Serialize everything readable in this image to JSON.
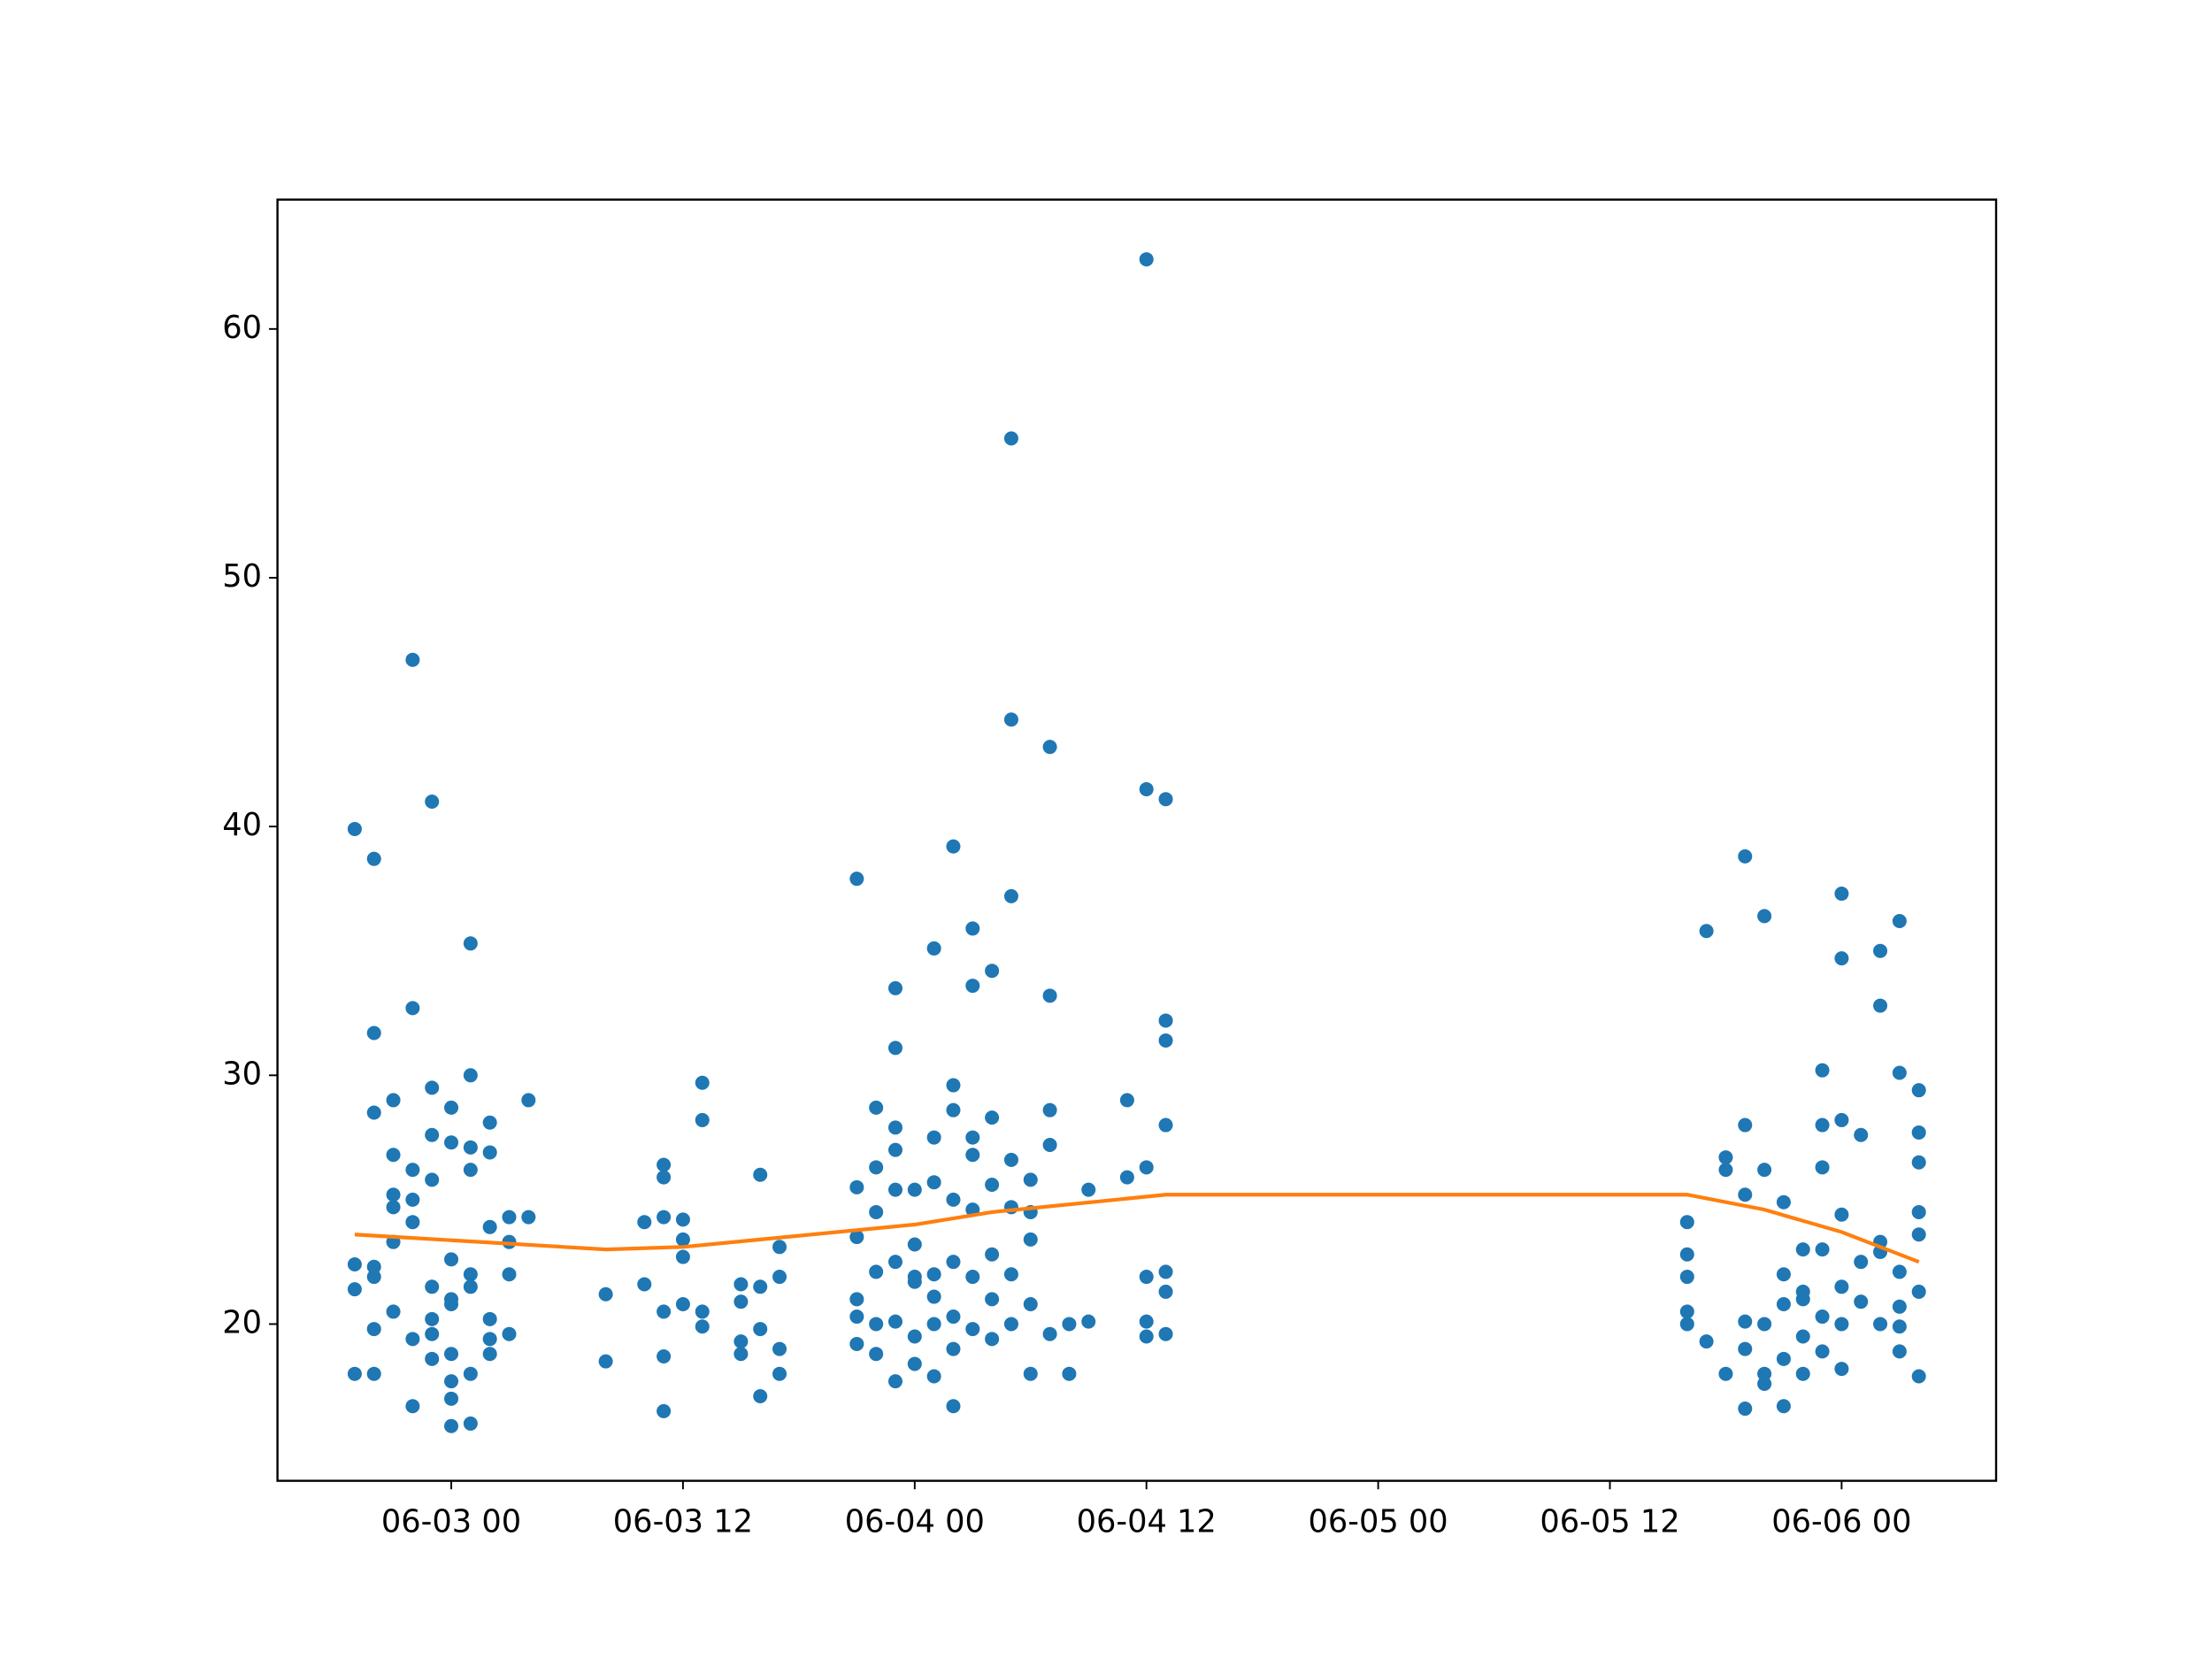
{
  "chart_data": {
    "type": "scatter",
    "xlim": [
      "06-02 15",
      "06-06 08"
    ],
    "xticks": [
      "06-03 00",
      "06-03 12",
      "06-04 00",
      "06-04 12",
      "06-05 00",
      "06-05 12",
      "06-06 00"
    ],
    "ylim": [
      13.7,
      65.2
    ],
    "yticks": [
      20,
      30,
      40,
      50,
      60
    ],
    "series": [
      {
        "type": "scatter",
        "color": "#1f77b4",
        "x": [
          "06-02 19",
          "06-02 19",
          "06-02 19",
          "06-02 19",
          "06-02 20",
          "06-02 20",
          "06-02 20",
          "06-02 20",
          "06-02 20",
          "06-02 20",
          "06-02 20",
          "06-02 21",
          "06-02 21",
          "06-02 21",
          "06-02 21",
          "06-02 21",
          "06-02 21",
          "06-02 22",
          "06-02 22",
          "06-02 22",
          "06-02 22",
          "06-02 22",
          "06-02 22",
          "06-02 22",
          "06-02 23",
          "06-02 23",
          "06-02 23",
          "06-02 23",
          "06-02 23",
          "06-02 23",
          "06-02 23",
          "06-02 23",
          "06-03 00",
          "06-03 00",
          "06-03 00",
          "06-03 00",
          "06-03 00",
          "06-03 00",
          "06-03 00",
          "06-03 00",
          "06-03 00",
          "06-03 01",
          "06-03 01",
          "06-03 01",
          "06-03 01",
          "06-03 01",
          "06-03 01",
          "06-03 01",
          "06-03 01",
          "06-03 02",
          "06-03 02",
          "06-03 02",
          "06-03 02",
          "06-03 02",
          "06-03 02",
          "06-03 03",
          "06-03 03",
          "06-03 03",
          "06-03 03",
          "06-03 04",
          "06-03 04",
          "06-03 08",
          "06-03 08",
          "06-03 10",
          "06-03 10",
          "06-03 11",
          "06-03 11",
          "06-03 11",
          "06-03 11",
          "06-03 11",
          "06-03 11",
          "06-03 12",
          "06-03 12",
          "06-03 12",
          "06-03 12",
          "06-03 13",
          "06-03 13",
          "06-03 13",
          "06-03 13",
          "06-03 15",
          "06-03 15",
          "06-03 15",
          "06-03 15",
          "06-03 16",
          "06-03 16",
          "06-03 16",
          "06-03 16",
          "06-03 17",
          "06-03 17",
          "06-03 17",
          "06-03 17",
          "06-03 21",
          "06-03 21",
          "06-03 21",
          "06-03 21",
          "06-03 21",
          "06-03 21",
          "06-03 22",
          "06-03 22",
          "06-03 22",
          "06-03 22",
          "06-03 22",
          "06-03 22",
          "06-03 23",
          "06-03 23",
          "06-03 23",
          "06-03 23",
          "06-03 23",
          "06-03 23",
          "06-03 23",
          "06-03 23",
          "06-04 00",
          "06-04 00",
          "06-04 00",
          "06-04 00",
          "06-04 00",
          "06-04 00",
          "06-04 01",
          "06-04 01",
          "06-04 01",
          "06-04 01",
          "06-04 01",
          "06-04 01",
          "06-04 01",
          "06-04 02",
          "06-04 02",
          "06-04 02",
          "06-04 02",
          "06-04 02",
          "06-04 02",
          "06-04 02",
          "06-04 02",
          "06-04 03",
          "06-04 03",
          "06-04 03",
          "06-04 03",
          "06-04 03",
          "06-04 03",
          "06-04 03",
          "06-04 04",
          "06-04 04",
          "06-04 04",
          "06-04 04",
          "06-04 04",
          "06-04 04",
          "06-04 05",
          "06-04 05",
          "06-04 05",
          "06-04 05",
          "06-04 05",
          "06-04 05",
          "06-04 05",
          "06-04 06",
          "06-04 06",
          "06-04 06",
          "06-04 06",
          "06-04 06",
          "06-04 07",
          "06-04 07",
          "06-04 07",
          "06-04 07",
          "06-04 07",
          "06-04 08",
          "06-04 08",
          "06-04 09",
          "06-04 09",
          "06-04 11",
          "06-04 11",
          "06-04 12",
          "06-04 12",
          "06-04 12",
          "06-04 12",
          "06-04 12",
          "06-04 12",
          "06-04 13",
          "06-04 13",
          "06-04 13",
          "06-04 13",
          "06-04 13",
          "06-04 13",
          "06-04 13",
          "06-05 16",
          "06-05 16",
          "06-05 16",
          "06-05 16",
          "06-05 16",
          "06-05 17",
          "06-05 17",
          "06-05 18",
          "06-05 18",
          "06-05 18",
          "06-05 19",
          "06-05 19",
          "06-05 19",
          "06-05 19",
          "06-05 19",
          "06-05 19",
          "06-05 20",
          "06-05 20",
          "06-05 20",
          "06-05 20",
          "06-05 20",
          "06-05 21",
          "06-05 21",
          "06-05 21",
          "06-05 21",
          "06-05 21",
          "06-05 22",
          "06-05 22",
          "06-05 22",
          "06-05 22",
          "06-05 22",
          "06-05 23",
          "06-05 23",
          "06-05 23",
          "06-05 23",
          "06-05 23",
          "06-05 23",
          "06-06 00",
          "06-06 00",
          "06-06 00",
          "06-06 00",
          "06-06 00",
          "06-06 00",
          "06-06 00",
          "06-06 01",
          "06-06 01",
          "06-06 01",
          "06-06 02",
          "06-06 02",
          "06-06 02",
          "06-06 02",
          "06-06 02",
          "06-06 03",
          "06-06 03",
          "06-06 03",
          "06-06 03",
          "06-06 03",
          "06-06 03",
          "06-06 04",
          "06-06 04",
          "06-06 04",
          "06-06 04",
          "06-06 04",
          "06-06 04",
          "06-06 04"
        ],
        "values": [
          21.4,
          18.0,
          39.9,
          22.4,
          38.7,
          31.7,
          28.5,
          21.9,
          19.8,
          18.0,
          22.3,
          29.0,
          26.8,
          25.2,
          23.3,
          20.5,
          24.7,
          46.7,
          32.7,
          26.2,
          24.1,
          16.7,
          19.4,
          25.0,
          41.0,
          29.5,
          27.6,
          25.8,
          21.5,
          20.2,
          18.6,
          19.6,
          27.3,
          22.6,
          17.0,
          15.9,
          18.8,
          20.8,
          28.7,
          21.0,
          17.7,
          35.3,
          26.2,
          22.0,
          18.0,
          16.0,
          30.0,
          27.1,
          21.5,
          28.1,
          23.9,
          20.2,
          18.8,
          26.9,
          19.4,
          24.3,
          22.0,
          19.6,
          23.3,
          29.0,
          24.3,
          21.2,
          18.5,
          24.1,
          21.6,
          26.4,
          24.3,
          20.5,
          18.7,
          16.5,
          25.9,
          22.7,
          20.8,
          24.2,
          23.4,
          29.7,
          28.2,
          20.5,
          19.9,
          21.6,
          19.3,
          18.8,
          20.9,
          26.0,
          17.1,
          19.8,
          21.5,
          23.1,
          19.0,
          18.0,
          21.9,
          37.9,
          25.5,
          23.5,
          20.3,
          19.2,
          21.0,
          28.7,
          24.5,
          22.1,
          20.0,
          18.8,
          26.3,
          33.5,
          31.1,
          27.9,
          25.4,
          22.5,
          17.7,
          27.0,
          20.1,
          25.4,
          21.7,
          19.5,
          18.4,
          23.2,
          21.9,
          35.1,
          27.5,
          25.7,
          22.0,
          20.0,
          17.9,
          21.1,
          39.2,
          29.6,
          28.6,
          25.0,
          22.5,
          19.0,
          16.7,
          20.3,
          35.9,
          33.6,
          27.5,
          24.6,
          21.9,
          19.8,
          26.8,
          34.2,
          28.3,
          25.6,
          22.8,
          21.0,
          19.4,
          55.6,
          44.3,
          37.2,
          26.6,
          24.7,
          20.0,
          22.0,
          25.8,
          23.4,
          20.8,
          18.0,
          24.5,
          43.2,
          33.2,
          28.6,
          27.2,
          19.6,
          20.0,
          18.0,
          25.4,
          20.1,
          29.0,
          25.9,
          62.8,
          41.5,
          26.3,
          21.9,
          20.1,
          19.5,
          41.1,
          32.2,
          31.4,
          28.0,
          22.1,
          21.3,
          19.6,
          24.1,
          22.8,
          20.5,
          20.0,
          21.9,
          19.3,
          35.8,
          26.7,
          26.2,
          18.0,
          38.8,
          28.0,
          25.2,
          20.1,
          19.0,
          16.6,
          36.4,
          26.2,
          20.0,
          17.6,
          18.0,
          24.9,
          18.6,
          16.7,
          20.8,
          22.0,
          23.0,
          21.3,
          19.5,
          18.0,
          21.0,
          30.2,
          28.0,
          26.3,
          23.0,
          20.3,
          18.9,
          37.3,
          34.7,
          28.2,
          24.4,
          21.5,
          20.0,
          18.2,
          22.5,
          20.9,
          27.6,
          35.0,
          32.8,
          23.3,
          20.0,
          22.9,
          36.2,
          22.1,
          20.7,
          19.9,
          18.9,
          30.1,
          29.4,
          27.7,
          26.5,
          24.5,
          23.6,
          21.3,
          17.9
        ]
      },
      {
        "type": "line",
        "color": "#ff7f0e",
        "x": [
          "06-02 19",
          "06-03 08",
          "06-03 12",
          "06-03 16",
          "06-04 00",
          "06-04 04",
          "06-04 13",
          "06-05 16",
          "06-05 20",
          "06-06 00",
          "06-06 04"
        ],
        "values": [
          23.6,
          23.0,
          23.1,
          23.4,
          24.0,
          24.5,
          25.2,
          25.2,
          24.6,
          23.7,
          22.5
        ]
      }
    ]
  }
}
